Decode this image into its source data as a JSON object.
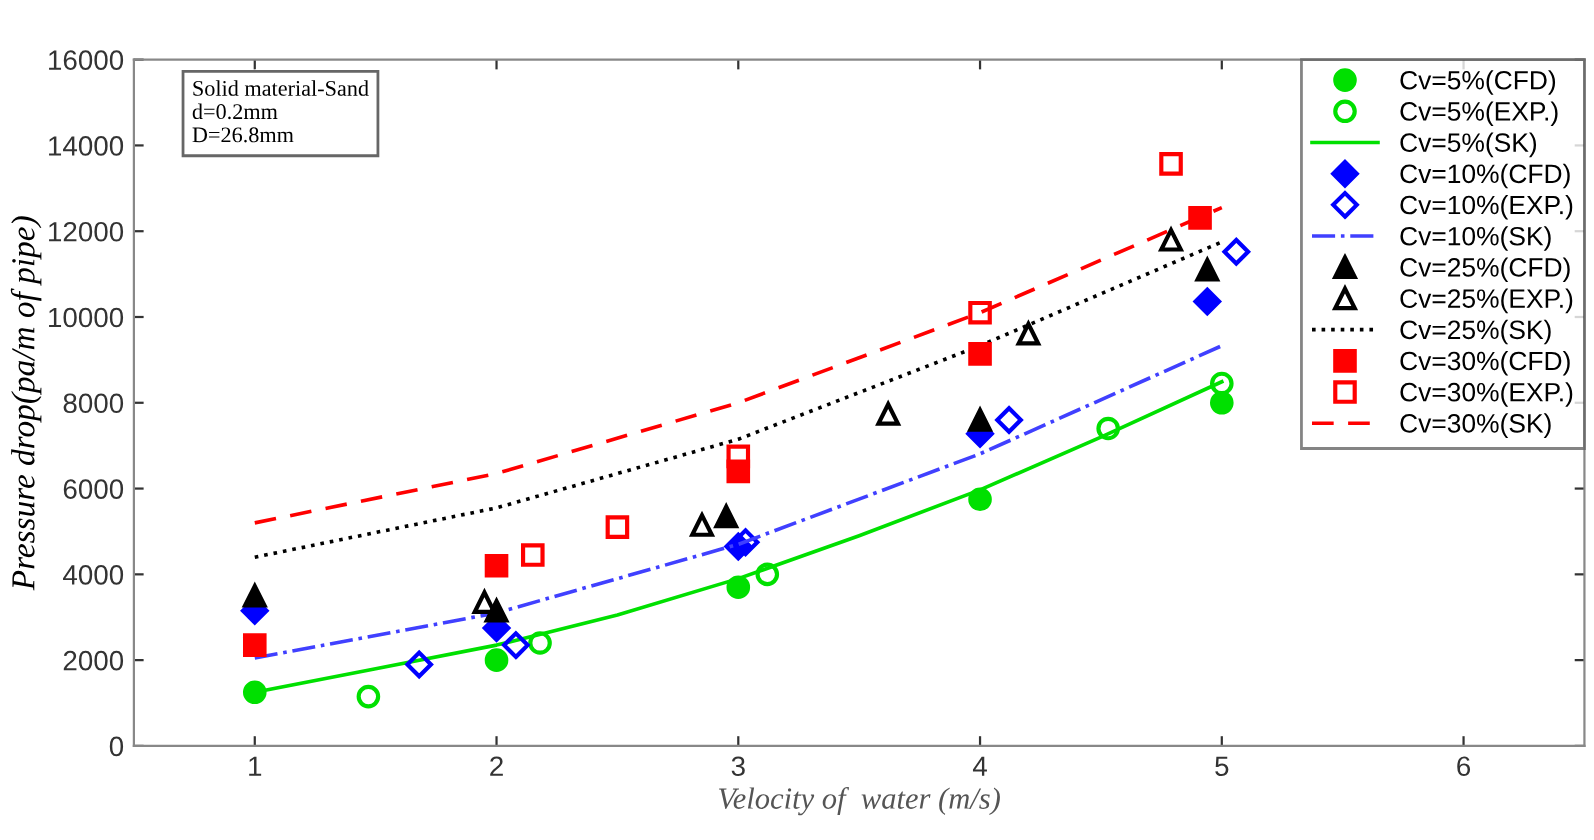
{
  "chart_data": {
    "type": "scatter",
    "xlabel": "Velocity of  water (m/s)",
    "ylabel": "Pressure drop(pa/m of pipe)",
    "annotations": [
      "Solid material-Sand\nd=0.2mm\nD=26.8mm"
    ],
    "xlim": [
      0.5,
      6.5
    ],
    "xticks": [
      1,
      2,
      3,
      4,
      5,
      6
    ],
    "ylim": [
      0,
      16000
    ],
    "yticks": [
      0,
      2000,
      4000,
      6000,
      8000,
      10000,
      12000,
      14000,
      16000
    ],
    "grid": false,
    "legend": "top right",
    "series": [
      {
        "name": "Cv=5%(CFD)",
        "marker": "circle",
        "color": "#00e000",
        "x": [
          1,
          2,
          3,
          4,
          5
        ],
        "values": [
          1250,
          2000,
          3700,
          5750,
          8000
        ]
      },
      {
        "name": "Cv=5%(EXP.)",
        "marker": "circle",
        "color": "#00e000",
        "x": [
          1.47,
          2.18,
          3.12,
          4.53,
          5.0
        ],
        "values": [
          1150,
          2400,
          4000,
          7400,
          8450
        ]
      },
      {
        "name": "Cv=5%(SK)",
        "type": "line",
        "line_style": "solid",
        "color": "#00e000",
        "x": [
          1,
          1.5,
          2,
          2.5,
          3,
          3.5,
          4,
          4.5,
          5
        ],
        "values": [
          1250,
          1800,
          2350,
          3050,
          3900,
          4900,
          5970,
          7200,
          8490
        ]
      },
      {
        "name": "Cv=10%(CFD)",
        "marker": "diamond",
        "color": "#0000ff",
        "x": [
          1,
          2,
          3,
          4,
          4.94
        ],
        "values": [
          3150,
          2750,
          4650,
          7280,
          10360
        ]
      },
      {
        "name": "Cv=10%(EXP.)",
        "marker": "diamond",
        "color": "#0000ff",
        "x": [
          1.68,
          2.08,
          3.03,
          4.12,
          5.06
        ],
        "values": [
          1900,
          2350,
          4750,
          7600,
          11520
        ]
      },
      {
        "name": "Cv=10%(SK)",
        "type": "line",
        "line_style": "dashdot",
        "color": "#4040ff",
        "x": [
          1,
          2,
          3,
          4,
          5
        ],
        "values": [
          2050,
          3100,
          4700,
          6810,
          9330
        ]
      },
      {
        "name": "Cv=25%(CFD)",
        "marker": "triangle",
        "color": "#000000",
        "x": [
          1,
          2,
          2.95,
          4,
          4.94
        ],
        "values": [
          3500,
          3150,
          5350,
          7600,
          11100
        ]
      },
      {
        "name": "Cv=25%(EXP.)",
        "marker": "triangle",
        "color": "#000000",
        "x": [
          1.95,
          2.85,
          3.62,
          4.2,
          4.79
        ],
        "values": [
          3350,
          5150,
          7740,
          9610,
          11800
        ]
      },
      {
        "name": "Cv=25%(SK)",
        "type": "line",
        "line_style": "dotted",
        "color": "#000000",
        "x": [
          1,
          2,
          3,
          4,
          5
        ],
        "values": [
          4400,
          5550,
          7150,
          9330,
          11750
        ]
      },
      {
        "name": "Cv=30%(CFD)",
        "marker": "square",
        "color": "#ff0000",
        "x": [
          1,
          2,
          3,
          4,
          4.91
        ],
        "values": [
          2350,
          4200,
          6400,
          9140,
          12310
        ]
      },
      {
        "name": "Cv=30%(EXP.)",
        "marker": "square",
        "color": "#ff0000",
        "x": [
          2.15,
          2.5,
          3,
          4,
          4.79
        ],
        "values": [
          4450,
          5100,
          6750,
          10100,
          13570
        ]
      },
      {
        "name": "Cv=30%(SK)",
        "type": "line",
        "line_style": "dashed",
        "color": "#ff0000",
        "x": [
          1,
          2,
          3,
          4,
          5
        ],
        "values": [
          5200,
          6350,
          8000,
          10100,
          12550
        ]
      }
    ]
  }
}
